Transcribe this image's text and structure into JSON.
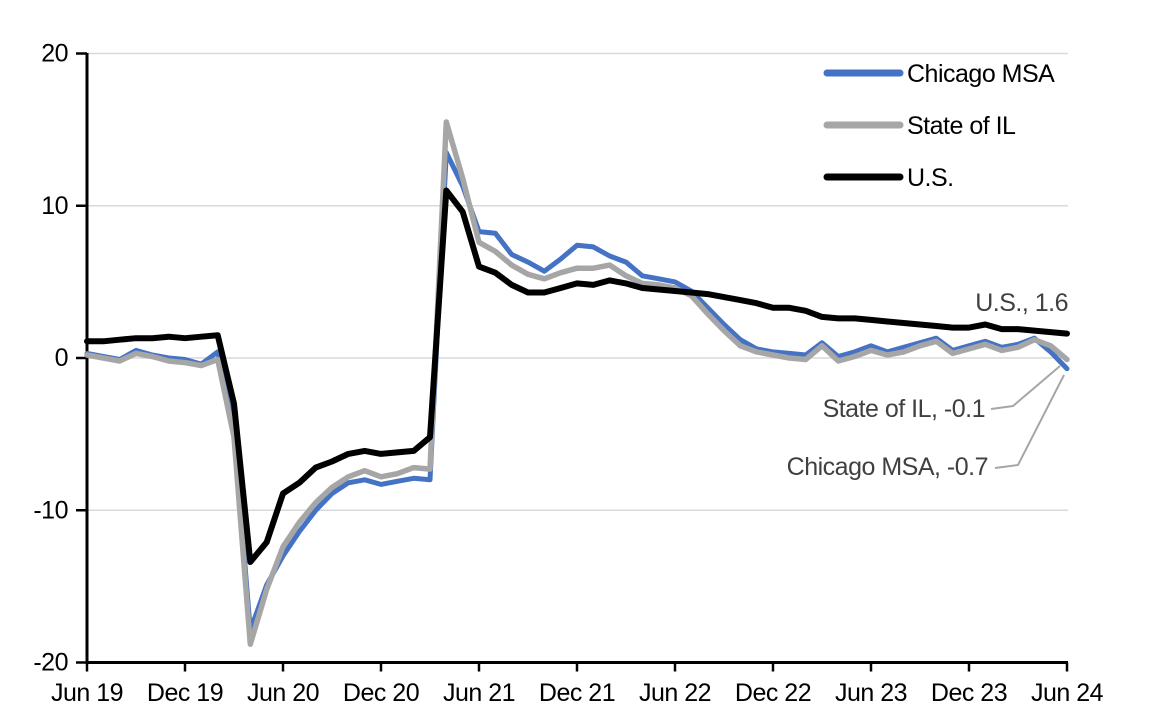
{
  "chart_data": {
    "type": "line",
    "title": "",
    "x_frequency": "monthly",
    "x_range": [
      "Jun 2019",
      "Jun 2024"
    ],
    "x_tick_labels": [
      "Jun 19",
      "Dec 19",
      "Jun 20",
      "Dec 20",
      "Jun 21",
      "Dec 21",
      "Jun 22",
      "Dec 22",
      "Jun 23",
      "Dec 23",
      "Jun 24"
    ],
    "ylim": [
      -20,
      20
    ],
    "y_tick_labels": [
      "20",
      "10",
      "0",
      "-10",
      "-20"
    ],
    "grid": "horizontal",
    "legend": {
      "position": "top-right",
      "entries": [
        "Chicago MSA",
        "State of IL",
        "U.S."
      ]
    },
    "series": [
      {
        "name": "Chicago MSA",
        "color": "#4472C4",
        "values": [
          0.3,
          0.1,
          -0.1,
          0.5,
          0.2,
          0.0,
          -0.1,
          -0.4,
          0.4,
          -4.8,
          -17.9,
          -14.9,
          -13.0,
          -11.4,
          -10.0,
          -8.9,
          -8.2,
          -8.0,
          -8.3,
          -8.1,
          -7.9,
          -8.0,
          13.5,
          11.3,
          8.3,
          8.2,
          6.8,
          6.3,
          5.7,
          6.5,
          7.4,
          7.3,
          6.7,
          6.3,
          5.4,
          5.2,
          5.0,
          4.4,
          3.3,
          2.2,
          1.2,
          0.6,
          0.4,
          0.3,
          0.2,
          1.0,
          0.1,
          0.4,
          0.8,
          0.4,
          0.7,
          1.0,
          1.3,
          0.5,
          0.8,
          1.1,
          0.7,
          0.9,
          1.3,
          0.4,
          -0.7
        ]
      },
      {
        "name": "State of IL",
        "color": "#A6A6A6",
        "values": [
          0.2,
          0.0,
          -0.2,
          0.3,
          0.1,
          -0.2,
          -0.3,
          -0.5,
          -0.1,
          -5.2,
          -18.8,
          -15.2,
          -12.4,
          -10.8,
          -9.5,
          -8.5,
          -7.8,
          -7.4,
          -7.8,
          -7.6,
          -7.2,
          -7.3,
          15.5,
          11.8,
          7.6,
          7.0,
          6.1,
          5.5,
          5.2,
          5.6,
          5.9,
          5.9,
          6.1,
          5.4,
          4.9,
          4.8,
          4.6,
          4.1,
          2.9,
          1.8,
          0.8,
          0.4,
          0.2,
          0.0,
          -0.1,
          0.8,
          -0.2,
          0.1,
          0.5,
          0.2,
          0.4,
          0.8,
          1.1,
          0.3,
          0.6,
          0.9,
          0.5,
          0.7,
          1.2,
          0.8,
          -0.1
        ]
      },
      {
        "name": "U.S.",
        "color": "#000000",
        "values": [
          1.1,
          1.1,
          1.2,
          1.3,
          1.3,
          1.4,
          1.3,
          1.4,
          1.5,
          -3.0,
          -13.4,
          -12.1,
          -8.9,
          -8.2,
          -7.2,
          -6.8,
          -6.3,
          -6.1,
          -6.3,
          -6.2,
          -6.1,
          -5.2,
          11.0,
          9.6,
          6.0,
          5.6,
          4.8,
          4.3,
          4.3,
          4.6,
          4.9,
          4.8,
          5.1,
          4.9,
          4.6,
          4.5,
          4.4,
          4.3,
          4.2,
          4.0,
          3.8,
          3.6,
          3.3,
          3.3,
          3.1,
          2.7,
          2.6,
          2.6,
          2.5,
          2.4,
          2.3,
          2.2,
          2.1,
          2.0,
          2.0,
          2.2,
          1.9,
          1.9,
          1.8,
          1.7,
          1.6
        ]
      }
    ],
    "annotations": [
      {
        "label": "U.S., 1.6",
        "series": "U.S.",
        "value": 1.6
      },
      {
        "label": "State of IL, -0.1",
        "series": "State of IL",
        "value": -0.1
      },
      {
        "label": "Chicago MSA, -0.7",
        "series": "Chicago MSA",
        "value": -0.7
      }
    ],
    "colors": {
      "background": "#FFFFFF",
      "gridline": "#D9D9D9",
      "axis": "#000000",
      "annotation_text": "#404040",
      "leader_line": "#A6A6A6"
    }
  }
}
